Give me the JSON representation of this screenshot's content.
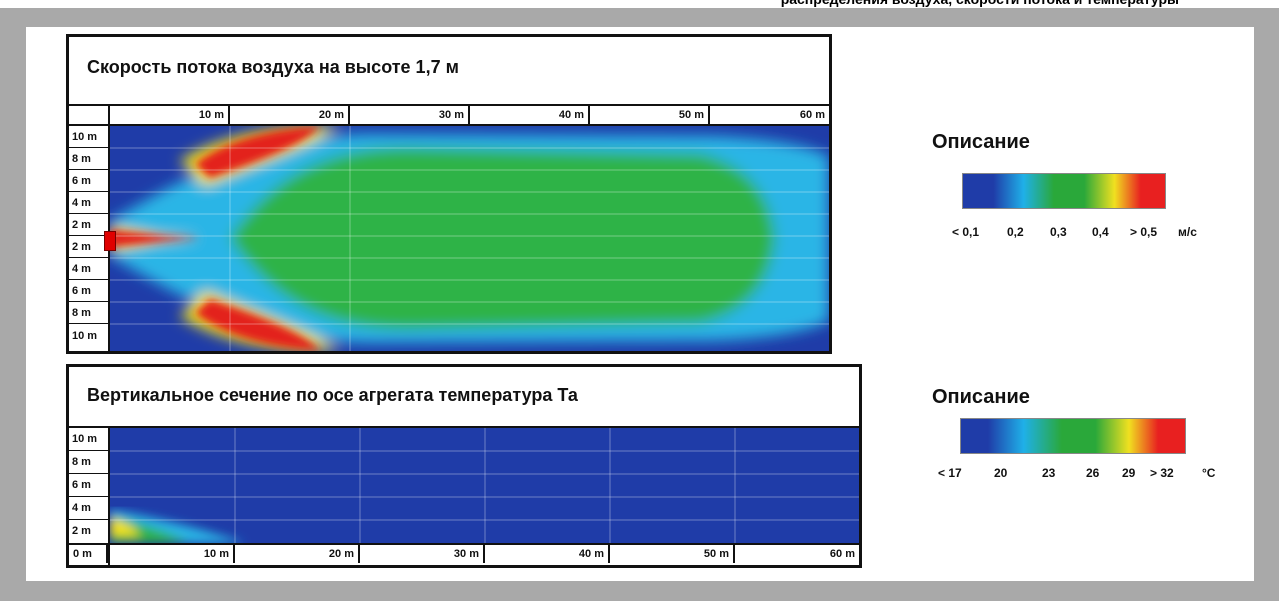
{
  "velocity_panel": {
    "title": "Скорость потока воздуха на высоте 1,7 м",
    "x_ticks": [
      "10 m",
      "20 m",
      "30 m",
      "40 m",
      "50 m",
      "60 m"
    ],
    "y_ticks": [
      "10 m",
      "8 m",
      "6 m",
      "4 m",
      "2 m",
      "2 m",
      "4 m",
      "6 m",
      "8 m",
      "10 m"
    ]
  },
  "temperature_panel": {
    "title": "Вертикальное сечение по осе агрегата температура Та",
    "x_ticks": [
      "0 m",
      "10 m",
      "20 m",
      "30 m",
      "40 m",
      "50 m",
      "60 m"
    ],
    "y_ticks": [
      "10 m",
      "8 m",
      "6 m",
      "4 m",
      "2 m"
    ]
  },
  "velocity_legend": {
    "title": "Описание",
    "labels": [
      "< 0,1",
      "0,2",
      "0,3",
      "0,4",
      "> 0,5",
      "м/с"
    ],
    "colors": [
      "#1f3ca8",
      "#1fb0e8",
      "#2aa83a",
      "#f0e020",
      "#e82020"
    ]
  },
  "temperature_legend": {
    "title": "Описание",
    "labels": [
      "< 17",
      "20",
      "23",
      "26",
      "29",
      "> 32",
      "°C"
    ],
    "colors": [
      "#1f3ca8",
      "#1fb0e8",
      "#2aa83a",
      "#f0e020",
      "#e82020"
    ]
  },
  "colors": {
    "low": "#1f3ca8",
    "mid_low": "#2bb5e6",
    "mid": "#2fb347",
    "mid_high": "#f4e21c",
    "high": "#e3201f"
  }
}
